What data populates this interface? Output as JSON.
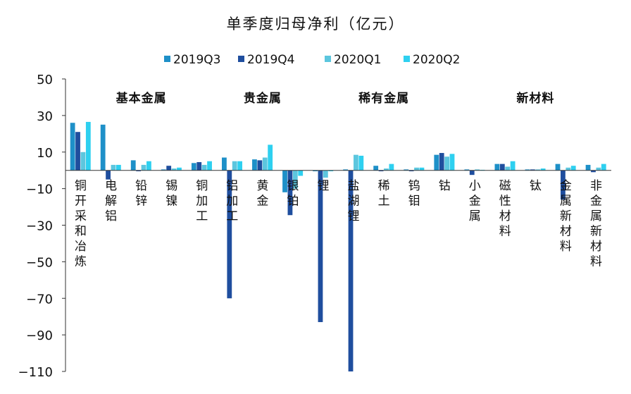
{
  "chart_data": {
    "type": "bar",
    "title": "单季度归母净利（亿元）",
    "legend_position": "top",
    "grid": false,
    "ylim": [
      -110,
      50
    ],
    "yticks": [
      50,
      30,
      10,
      -10,
      -30,
      -50,
      -70,
      -90,
      -110
    ],
    "categories": [
      "铜开采和冶炼",
      "电解铝",
      "铅锌",
      "锡镍",
      "铜加工",
      "铝加工",
      "黄金",
      "银铂",
      "锂",
      "盐湖锂",
      "稀土",
      "钨钼",
      "钴",
      "小金属",
      "磁性材料",
      "钛",
      "金属新材料",
      "非金属新材料"
    ],
    "groups": [
      {
        "label": "基本金属",
        "span": [
          0,
          4
        ]
      },
      {
        "label": "贵金属",
        "span": [
          5,
          7
        ]
      },
      {
        "label": "稀有金属",
        "span": [
          8,
          12
        ]
      },
      {
        "label": "新材料",
        "span": [
          13,
          17
        ]
      }
    ],
    "series": [
      {
        "name": "2019Q3",
        "color": "#1E90C8",
        "values": [
          26,
          25,
          5.5,
          0.5,
          4,
          7,
          6,
          -12,
          -0.5,
          0.5,
          2.5,
          0.5,
          8.5,
          0.5,
          3.5,
          0.5,
          3.5,
          3
        ]
      },
      {
        "name": "2019Q4",
        "color": "#1F4E9E",
        "values": [
          21,
          -5,
          -0.5,
          2.5,
          4.5,
          -70,
          5.5,
          -24.5,
          -83,
          -110,
          -0.5,
          -0.5,
          9.5,
          -2.5,
          3.5,
          0.5,
          -16,
          -1
        ]
      },
      {
        "name": "2020Q1",
        "color": "#5CC6DE",
        "values": [
          10,
          3,
          3,
          1,
          3,
          5,
          7,
          -10,
          -4,
          8.5,
          1,
          1.5,
          7.5,
          0.5,
          2,
          0.5,
          1.5,
          1.5
        ]
      },
      {
        "name": "2020Q2",
        "color": "#2ED0F0",
        "values": [
          26.5,
          3,
          5,
          1.5,
          5,
          5,
          14,
          -3,
          -0.5,
          8,
          3.5,
          1.5,
          9,
          0.3,
          5,
          1,
          2.5,
          3.5
        ]
      }
    ]
  }
}
